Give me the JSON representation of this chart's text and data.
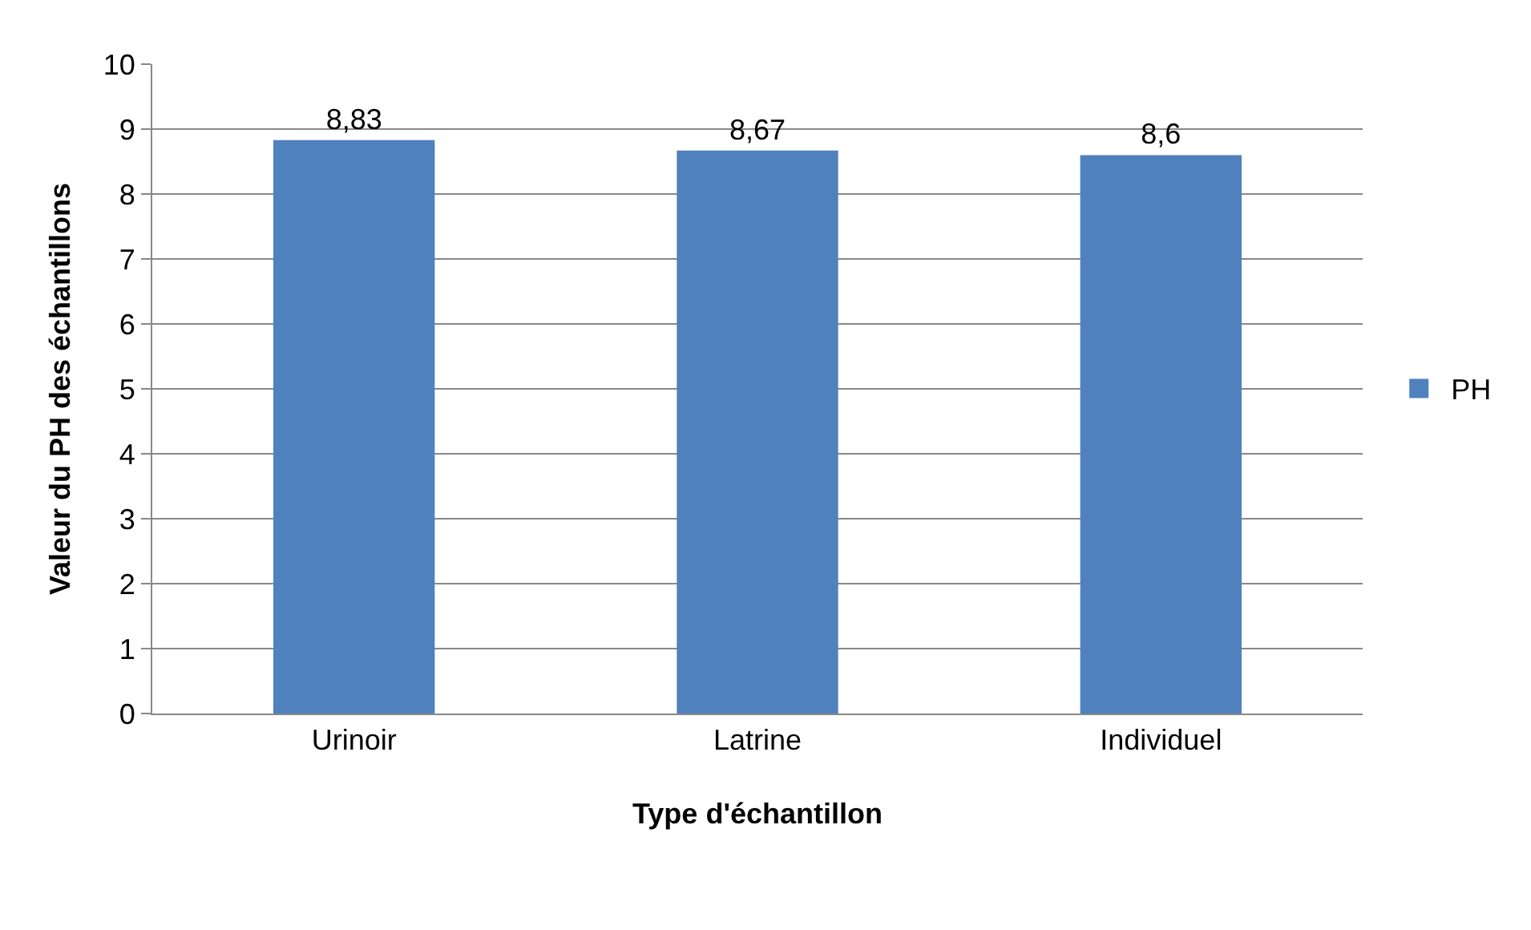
{
  "chart_data": {
    "type": "bar",
    "xlabel": "Type d'échantillon",
    "ylabel": "Valeur du PH des échantillons",
    "categories": [
      "Urinoir",
      "Latrine",
      "Individuel"
    ],
    "series": [
      {
        "name": "PH",
        "color": "#4f81bd",
        "values": [
          8.83,
          8.67,
          8.6
        ],
        "value_labels": [
          "8,83",
          "8,67",
          "8,6"
        ]
      }
    ],
    "ylim": [
      0,
      10
    ],
    "yticks": [
      0,
      1,
      2,
      3,
      4,
      5,
      6,
      7,
      8,
      9,
      10
    ],
    "grid": "y",
    "legend": "right"
  }
}
